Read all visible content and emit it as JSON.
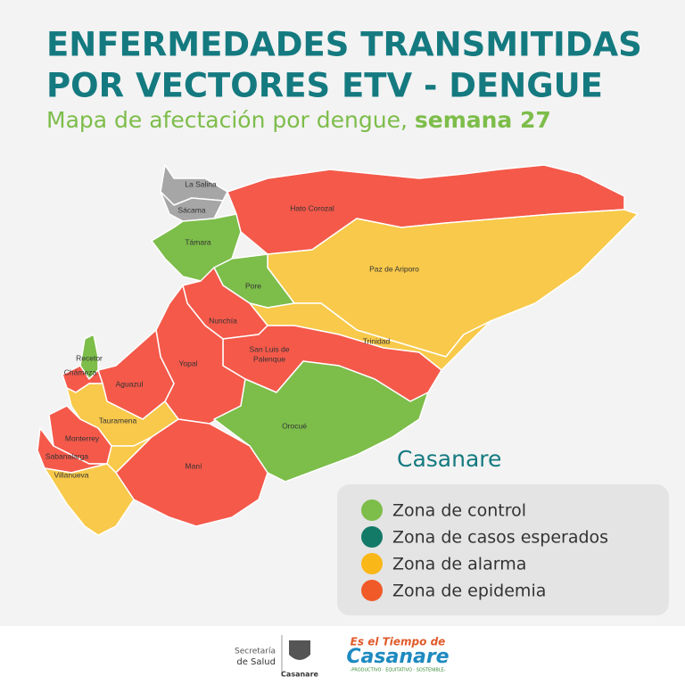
{
  "header": {
    "title_lines": [
      "ENFERMEDADES TRANSMITIDAS",
      "POR VECTORES ETV - DENGUE"
    ],
    "subtitle": "Mapa de afectación por dengue,",
    "subtitle_bold": "semana 27"
  },
  "map": {
    "region": "Casanare",
    "no_data_color": "#a6a6a6",
    "municipalities": [
      {
        "name": "La Salina",
        "zone": null
      },
      {
        "name": "Sácama",
        "zone": null
      },
      {
        "name": "Támara",
        "zone": "Zona de control"
      },
      {
        "name": "Hato Corozal",
        "zone": "Zona de epidemia"
      },
      {
        "name": "Paz de Ariporo",
        "zone": "Zona de alarma"
      },
      {
        "name": "Pore",
        "zone": "Zona de control"
      },
      {
        "name": "Trinidad",
        "zone": "Zona de alarma"
      },
      {
        "name": "Nunchía",
        "zone": "Zona de epidemia"
      },
      {
        "name_lines": [
          "San Luis de",
          "Palenque"
        ],
        "zone": "Zona de epidemia"
      },
      {
        "name": "Yopal",
        "zone": "Zona de epidemia"
      },
      {
        "name": "Orocué",
        "zone": "Zona de control"
      },
      {
        "name": "Aguazul",
        "zone": "Zona de epidemia"
      },
      {
        "name": "Recetor",
        "zone": "Zona de control"
      },
      {
        "name": "Chámeza",
        "zone": "Zona de epidemia"
      },
      {
        "name": "Tauramena",
        "zone": "Zona de alarma"
      },
      {
        "name": "Maní",
        "zone": "Zona de epidemia"
      },
      {
        "name": "Monterrey",
        "zone": "Zona de epidemia"
      },
      {
        "name": "Sabanalarga",
        "zone": "Zona de epidemia"
      },
      {
        "name": "Villanueva",
        "zone": "Zona de alarma"
      }
    ]
  },
  "legend": [
    {
      "label": "Zona de control",
      "color": "#7dbd4a",
      "map_color": "#7dbd4a"
    },
    {
      "label": "Zona de casos esperados",
      "color": "#137a68",
      "map_color": "#137a68"
    },
    {
      "label": "Zona de alarma",
      "color": "#f9b718",
      "map_color": "#f8c94a"
    },
    {
      "label": "Zona de epidemia",
      "color": "#f05a28",
      "map_color": "#f4594a"
    }
  ],
  "footer": {
    "secretaria_lines": [
      "Secretaría",
      "de Salud"
    ],
    "emblem_label": "Casanare",
    "slogan_top": "Es el Tiempo de",
    "slogan_main": "Casanare",
    "slogan_bottom": "-PRODUCTIVO · EQUITATIVO · SOSTENIBLE-"
  }
}
